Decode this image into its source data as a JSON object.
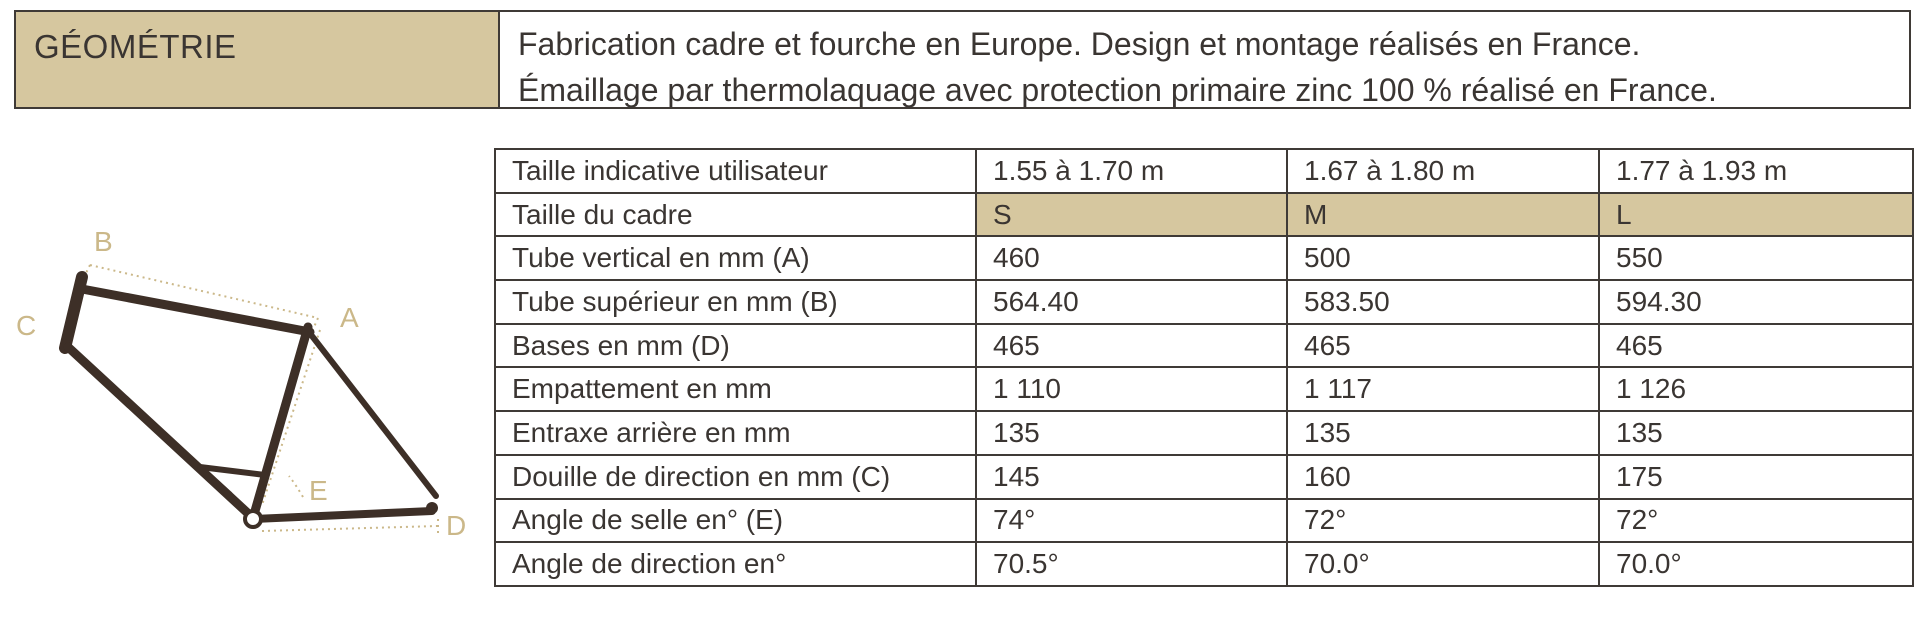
{
  "header": {
    "title": "GÉOMÉTRIE",
    "desc_line1": "Fabrication cadre et fourche en Europe. Design et montage réalisés en France.",
    "desc_line2": "Émaillage par thermolaquage avec protection primaire zinc 100 % réalisé en France."
  },
  "diagram": {
    "labels": {
      "a": "A",
      "b": "B",
      "c": "C",
      "d": "D",
      "e": "E"
    },
    "colors": {
      "frame": "#3d2f27",
      "dimension": "#cbb889"
    }
  },
  "table": {
    "rows": [
      {
        "label": "Taille indicative utilisateur",
        "s": "1.55 à 1.70 m",
        "m": "1.67 à 1.80 m",
        "l": "1.77 à 1.93 m"
      },
      {
        "label": "Taille du cadre",
        "s": "S",
        "m": "M",
        "l": "L"
      },
      {
        "label": "Tube vertical en mm (A)",
        "s": "460",
        "m": "500",
        "l": "550"
      },
      {
        "label": "Tube supérieur en mm (B)",
        "s": "564.40",
        "m": "583.50",
        "l": "594.30"
      },
      {
        "label": "Bases en mm (D)",
        "s": "465",
        "m": "465",
        "l": "465"
      },
      {
        "label": "Empattement en mm",
        "s": "1 110",
        "m": "1 117",
        "l": "1 126"
      },
      {
        "label": "Entraxe arrière en mm",
        "s": "135",
        "m": "135",
        "l": "135"
      },
      {
        "label": "Douille de direction en mm (C)",
        "s": "145",
        "m": "160",
        "l": "175"
      },
      {
        "label": "Angle de selle en° (E)",
        "s": "74°",
        "m": "72°",
        "l": "72°"
      },
      {
        "label": "Angle de direction en°",
        "s": "70.5°",
        "m": "70.0°",
        "l": "70.0°"
      }
    ]
  },
  "colors": {
    "accent": "#d6c79f",
    "border": "#3f3a36",
    "text": "#3a3532"
  }
}
